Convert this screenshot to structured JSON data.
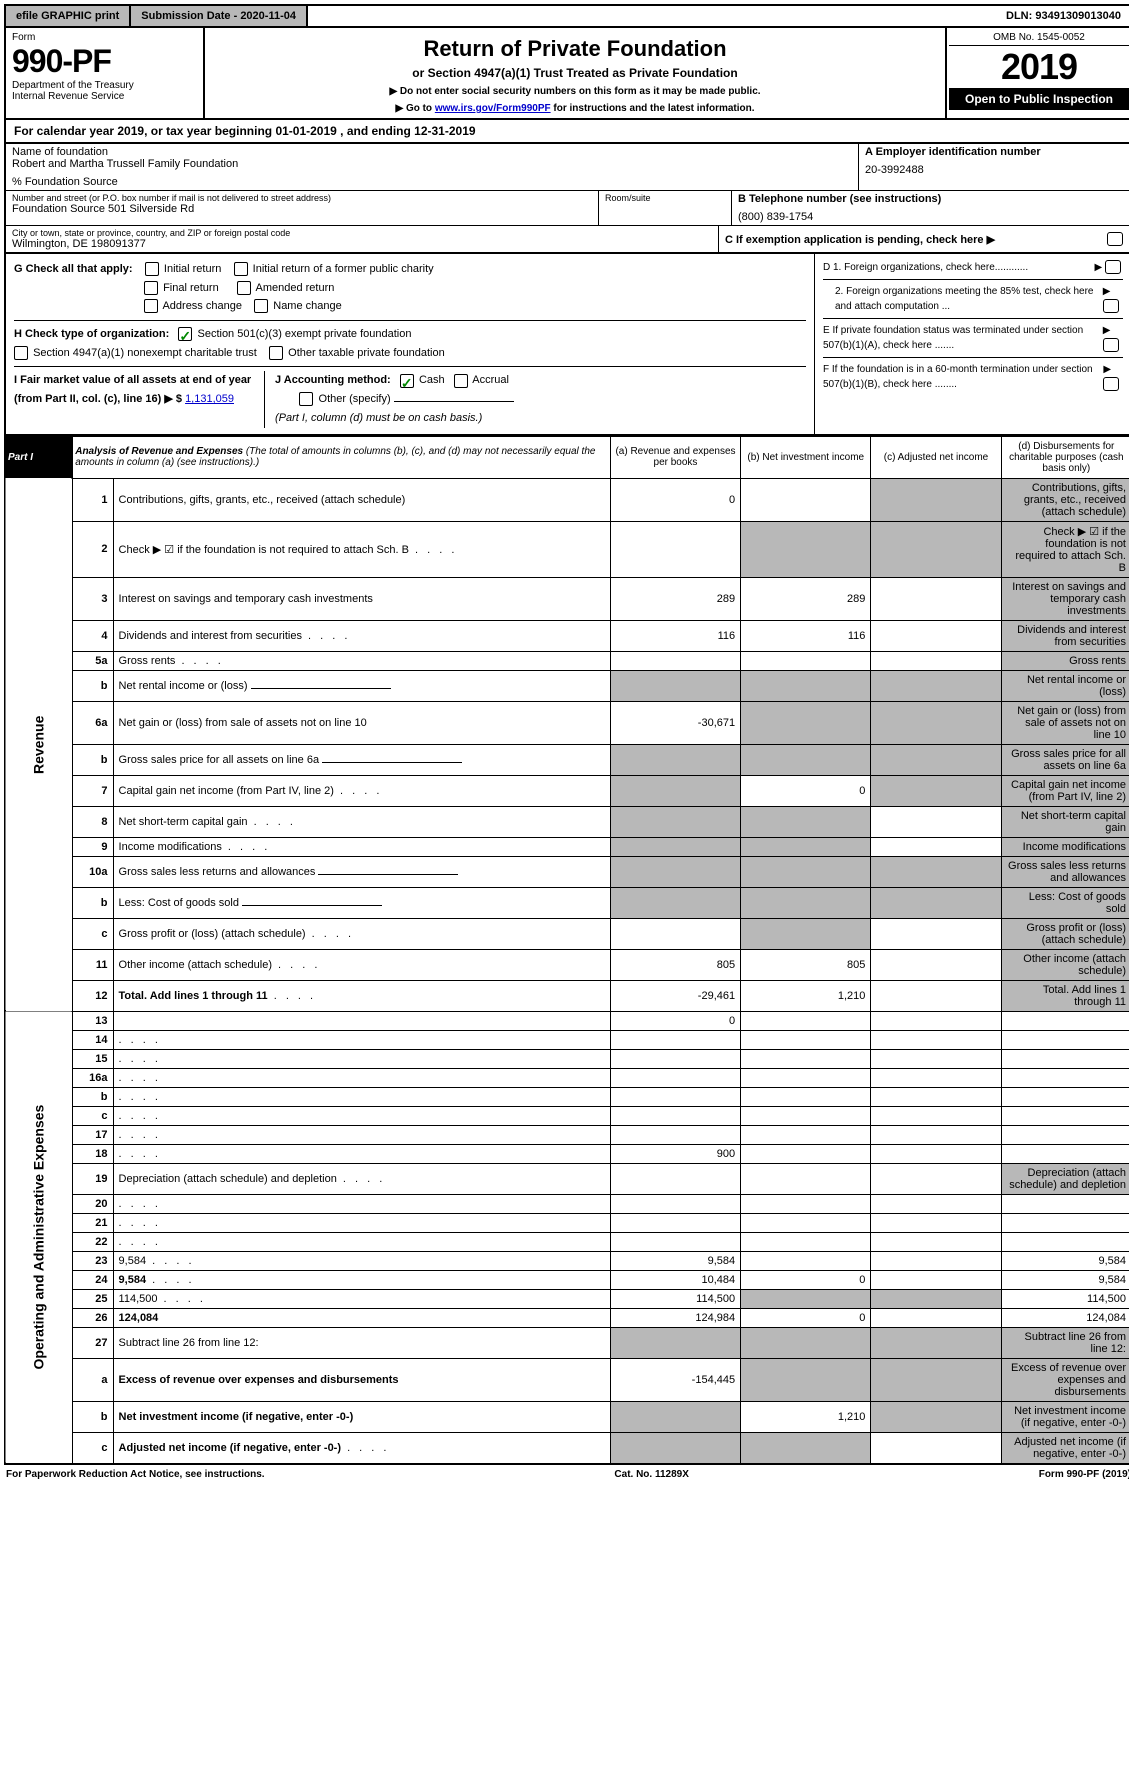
{
  "top": {
    "efile": "efile GRAPHIC print",
    "sub_label": "Submission Date - 2020-11-04",
    "dln": "DLN: 93491309013040"
  },
  "header": {
    "form_word": "Form",
    "form_num": "990-PF",
    "dept": "Department of the Treasury",
    "irs": "Internal Revenue Service",
    "title": "Return of Private Foundation",
    "subtitle": "or Section 4947(a)(1) Trust Treated as Private Foundation",
    "note1": "▶ Do not enter social security numbers on this form as it may be made public.",
    "note2_pre": "▶ Go to ",
    "note2_link": "www.irs.gov/Form990PF",
    "note2_post": " for instructions and the latest information.",
    "omb": "OMB No. 1545-0052",
    "year": "2019",
    "open": "Open to Public Inspection"
  },
  "calyear": "For calendar year 2019, or tax year beginning 01-01-2019                           , and ending 12-31-2019",
  "entity": {
    "name_label": "Name of foundation",
    "name": "Robert and Martha Trussell Family Foundation",
    "care_of": "% Foundation Source",
    "addr_label": "Number and street (or P.O. box number if mail is not delivered to street address)",
    "addr": "Foundation Source 501 Silverside Rd",
    "room_label": "Room/suite",
    "city_label": "City or town, state or province, country, and ZIP or foreign postal code",
    "city": "Wilmington, DE  198091377",
    "ein_label": "A Employer identification number",
    "ein": "20-3992488",
    "tel_label": "B Telephone number (see instructions)",
    "tel": "(800) 839-1754",
    "c_label": "C  If exemption application is pending, check here ▶"
  },
  "checks": {
    "g_label": "G Check all that apply:",
    "g_initial": "Initial return",
    "g_initial_former": "Initial return of a former public charity",
    "g_final": "Final return",
    "g_amended": "Amended return",
    "g_addr": "Address change",
    "g_name": "Name change",
    "h_label": "H Check type of organization:",
    "h_501c3": "Section 501(c)(3) exempt private foundation",
    "h_4947": "Section 4947(a)(1) nonexempt charitable trust",
    "h_other": "Other taxable private foundation",
    "i_label": "I Fair market value of all assets at end of year (from Part II, col. (c), line 16) ▶ $",
    "i_value": "1,131,059",
    "j_label": "J Accounting method:",
    "j_cash": "Cash",
    "j_accrual": "Accrual",
    "j_other": "Other (specify)",
    "j_note": "(Part I, column (d) must be on cash basis.)",
    "d1": "D 1. Foreign organizations, check here............",
    "d2": "2. Foreign organizations meeting the 85% test, check here and attach computation ...",
    "e": "E  If private foundation status was terminated under section 507(b)(1)(A), check here .......",
    "f": "F  If the foundation is in a 60-month termination under section 507(b)(1)(B), check here ........"
  },
  "part1": {
    "label": "Part I",
    "title_bold": "Analysis of Revenue and Expenses",
    "title_rest": " (The total of amounts in columns (b), (c), and (d) may not necessarily equal the amounts in column (a) (see instructions).)",
    "col_a": "(a) Revenue and expenses per books",
    "col_b": "(b) Net investment income",
    "col_c": "(c) Adjusted net income",
    "col_d": "(d) Disbursements for charitable purposes (cash basis only)"
  },
  "sides": {
    "revenue": "Revenue",
    "expenses": "Operating and Administrative Expenses"
  },
  "rows": [
    {
      "n": "1",
      "d": "Contributions, gifts, grants, etc., received (attach schedule)",
      "a": "0",
      "b": "",
      "c_shade": true,
      "d_shade": true
    },
    {
      "n": "2",
      "d": "Check ▶ ☑ if the foundation is not required to attach Sch. B",
      "dots": true,
      "a": "",
      "b_shade": true,
      "c_shade": true,
      "d_shade": true
    },
    {
      "n": "3",
      "d": "Interest on savings and temporary cash investments",
      "a": "289",
      "b": "289",
      "c": "",
      "d_shade": true
    },
    {
      "n": "4",
      "d": "Dividends and interest from securities",
      "dots": true,
      "a": "116",
      "b": "116",
      "c": "",
      "d_shade": true
    },
    {
      "n": "5a",
      "d": "Gross rents",
      "dots": true,
      "a": "",
      "b": "",
      "c": "",
      "d_shade": true
    },
    {
      "n": "b",
      "d": "Net rental income or (loss)",
      "underline": true,
      "a_shade": true,
      "b_shade": true,
      "c_shade": true,
      "d_shade": true
    },
    {
      "n": "6a",
      "d": "Net gain or (loss) from sale of assets not on line 10",
      "a": "-30,671",
      "b_shade": true,
      "c_shade": true,
      "d_shade": true
    },
    {
      "n": "b",
      "d": "Gross sales price for all assets on line 6a",
      "underline": true,
      "a_shade": true,
      "b_shade": true,
      "c_shade": true,
      "d_shade": true
    },
    {
      "n": "7",
      "d": "Capital gain net income (from Part IV, line 2)",
      "dots": true,
      "a_shade": true,
      "b": "0",
      "c_shade": true,
      "d_shade": true
    },
    {
      "n": "8",
      "d": "Net short-term capital gain",
      "dots": true,
      "a_shade": true,
      "b_shade": true,
      "c": "",
      "d_shade": true
    },
    {
      "n": "9",
      "d": "Income modifications",
      "dots": true,
      "a_shade": true,
      "b_shade": true,
      "c": "",
      "d_shade": true
    },
    {
      "n": "10a",
      "d": "Gross sales less returns and allowances",
      "underline": true,
      "a_shade": true,
      "b_shade": true,
      "c_shade": true,
      "d_shade": true
    },
    {
      "n": "b",
      "d": "Less: Cost of goods sold",
      "dots": true,
      "underline": true,
      "a_shade": true,
      "b_shade": true,
      "c_shade": true,
      "d_shade": true
    },
    {
      "n": "c",
      "d": "Gross profit or (loss) (attach schedule)",
      "dots": true,
      "a": "",
      "b_shade": true,
      "c": "",
      "d_shade": true
    },
    {
      "n": "11",
      "d": "Other income (attach schedule)",
      "dots": true,
      "a": "805",
      "b": "805",
      "c": "",
      "d_shade": true
    },
    {
      "n": "12",
      "d": "Total. Add lines 1 through 11",
      "bold": true,
      "dots": true,
      "a": "-29,461",
      "b": "1,210",
      "c": "",
      "d_shade": true
    },
    {
      "n": "13",
      "d": "",
      "a": "0",
      "b": "",
      "c": ""
    },
    {
      "n": "14",
      "d": "",
      "dots": true,
      "a": "",
      "b": "",
      "c": ""
    },
    {
      "n": "15",
      "d": "",
      "dots": true,
      "a": "",
      "b": "",
      "c": ""
    },
    {
      "n": "16a",
      "d": "",
      "dots": true,
      "a": "",
      "b": "",
      "c": ""
    },
    {
      "n": "b",
      "d": "",
      "dots": true,
      "a": "",
      "b": "",
      "c": ""
    },
    {
      "n": "c",
      "d": "",
      "dots": true,
      "a": "",
      "b": "",
      "c": ""
    },
    {
      "n": "17",
      "d": "",
      "dots": true,
      "a": "",
      "b": "",
      "c": ""
    },
    {
      "n": "18",
      "d": "",
      "dots": true,
      "a": "900",
      "b": "",
      "c": ""
    },
    {
      "n": "19",
      "d": "Depreciation (attach schedule) and depletion",
      "dots": true,
      "a": "",
      "b": "",
      "c": "",
      "d_shade": true
    },
    {
      "n": "20",
      "d": "",
      "dots": true,
      "a": "",
      "b": "",
      "c": ""
    },
    {
      "n": "21",
      "d": "",
      "dots": true,
      "a": "",
      "b": "",
      "c": ""
    },
    {
      "n": "22",
      "d": "",
      "dots": true,
      "a": "",
      "b": "",
      "c": ""
    },
    {
      "n": "23",
      "d": "9,584",
      "dots": true,
      "a": "9,584",
      "b": "",
      "c": ""
    },
    {
      "n": "24",
      "d": "9,584",
      "bold": true,
      "dots": true,
      "a": "10,484",
      "b": "0",
      "c": ""
    },
    {
      "n": "25",
      "d": "114,500",
      "dots": true,
      "a": "114,500",
      "b_shade": true,
      "c_shade": true
    },
    {
      "n": "26",
      "d": "124,084",
      "bold": true,
      "a": "124,984",
      "b": "0",
      "c": ""
    },
    {
      "n": "27",
      "d": "Subtract line 26 from line 12:",
      "a_shade": true,
      "b_shade": true,
      "c_shade": true,
      "d_shade": true
    },
    {
      "n": "a",
      "d": "Excess of revenue over expenses and disbursements",
      "bold": true,
      "a": "-154,445",
      "b_shade": true,
      "c_shade": true,
      "d_shade": true
    },
    {
      "n": "b",
      "d": "Net investment income (if negative, enter -0-)",
      "bold": true,
      "a_shade": true,
      "b": "1,210",
      "c_shade": true,
      "d_shade": true
    },
    {
      "n": "c",
      "d": "Adjusted net income (if negative, enter -0-)",
      "bold": true,
      "dots": true,
      "a_shade": true,
      "b_shade": true,
      "c": "",
      "d_shade": true
    }
  ],
  "footer": {
    "left": "For Paperwork Reduction Act Notice, see instructions.",
    "mid": "Cat. No. 11289X",
    "right": "Form 990-PF (2019)"
  }
}
